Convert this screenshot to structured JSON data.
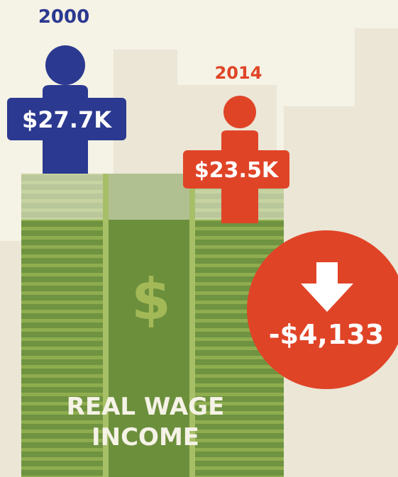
{
  "header": {
    "year_start": "2000",
    "year_end": "2014"
  },
  "people": [
    {
      "year": "2000",
      "wage": "$27.7K"
    },
    {
      "year": "2014",
      "wage": "$23.5K"
    }
  ],
  "change": "-$4,133",
  "money": {
    "symbol": "$",
    "label_lines": [
      "REAL WAGE",
      "INCOME"
    ]
  }
}
